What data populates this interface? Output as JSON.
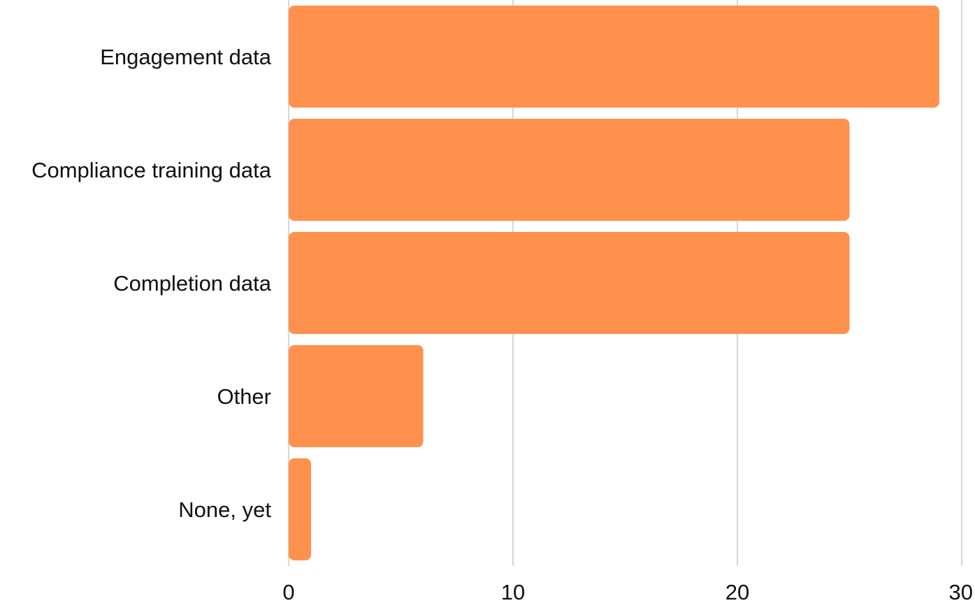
{
  "chart_data": {
    "type": "bar",
    "orientation": "horizontal",
    "categories": [
      "Engagement data",
      "Compliance training data",
      "Completion data",
      "Other",
      "None, yet"
    ],
    "values": [
      29,
      25,
      25,
      6,
      1
    ],
    "title": "",
    "xlabel": "",
    "ylabel": "",
    "xlim": [
      0,
      30
    ],
    "xticks": [
      "0",
      "10",
      "20",
      "30"
    ],
    "grid": "vertical",
    "legend": "none",
    "bar_color": "#ff914d"
  }
}
